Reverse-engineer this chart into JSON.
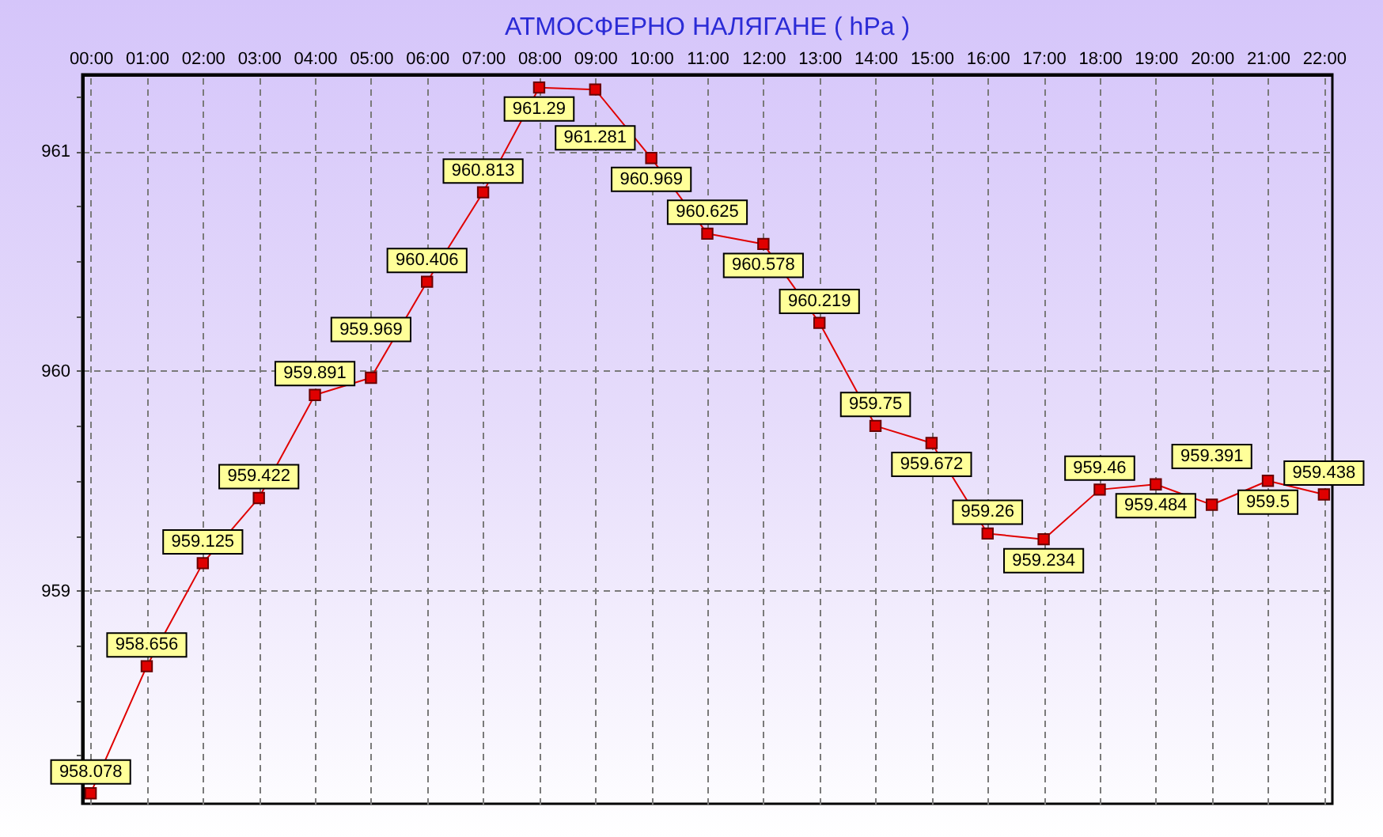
{
  "chart_data": {
    "type": "line",
    "title": "АТМОСФЕРНО НАЛЯГАНЕ ( hPa )",
    "categories": [
      "00:00",
      "01:00",
      "02:00",
      "03:00",
      "04:00",
      "05:00",
      "06:00",
      "07:00",
      "08:00",
      "09:00",
      "10:00",
      "11:00",
      "12:00",
      "13:00",
      "14:00",
      "15:00",
      "16:00",
      "17:00",
      "18:00",
      "19:00",
      "20:00",
      "21:00",
      "22:00"
    ],
    "series": [
      {
        "color": "#e00000",
        "values": [
          958.078,
          958.656,
          959.125,
          959.422,
          959.891,
          959.969,
          960.406,
          960.813,
          961.29,
          961.281,
          960.969,
          960.625,
          960.578,
          960.219,
          959.75,
          959.672,
          959.26,
          959.234,
          959.46,
          959.484,
          959.391,
          959.5,
          959.438
        ]
      }
    ],
    "ylim": [
      958.03,
      961.35
    ],
    "yticks": [
      {
        "value": 958.25,
        "label": null
      },
      {
        "value": 958.5,
        "label": null
      },
      {
        "value": 958.75,
        "label": null
      },
      959,
      {
        "value": 959.25,
        "label": null
      },
      {
        "value": 959.5,
        "label": null
      },
      {
        "value": 959.75,
        "label": null
      },
      960,
      {
        "value": 960.25,
        "label": null
      },
      {
        "value": 960.5,
        "label": null
      },
      {
        "value": 960.75,
        "label": null
      },
      961,
      {
        "value": 961.25,
        "label": null
      }
    ],
    "grid": true,
    "marker": "square",
    "data_labels": true
  }
}
